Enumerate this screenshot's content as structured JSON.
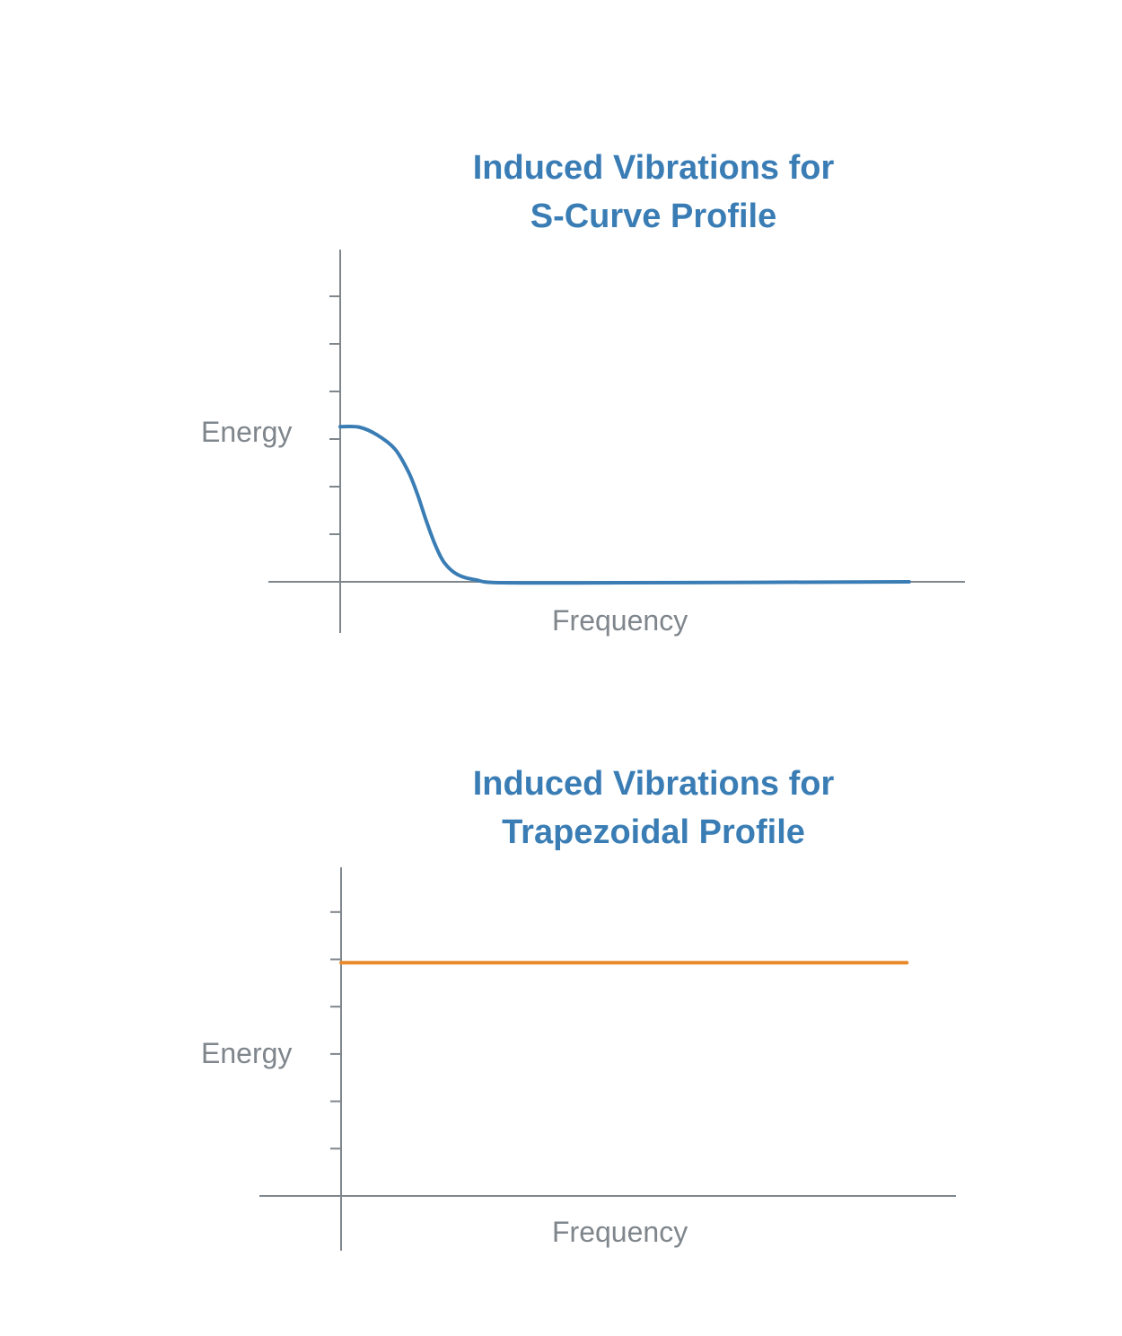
{
  "colors": {
    "axis": "#7f868c",
    "title": "#3a7db5"
  },
  "chart_data": [
    {
      "type": "line",
      "title_lines": [
        "Induced Vibrations for",
        "S-Curve Profile"
      ],
      "xlabel": "Frequency",
      "ylabel": "Energy",
      "xlim": [
        -1.5,
        13.1
      ],
      "ylim": [
        -1.05,
        7
      ],
      "y_ticks_count": 6,
      "grid": false,
      "series": [
        {
          "color": "#3a7db5",
          "x": [
            0,
            0.4,
            0.77,
            1.15,
            1.43,
            1.62,
            1.81,
            2.0,
            2.19,
            2.47,
            2.85,
            3.42,
            6,
            11.96
          ],
          "y": [
            3.26,
            3.25,
            3.09,
            2.79,
            2.32,
            1.85,
            1.28,
            0.77,
            0.4,
            0.15,
            0.04,
            -0.02,
            -0.02,
            0.0
          ]
        }
      ]
    },
    {
      "type": "line",
      "title_lines": [
        "Induced Vibrations for",
        "Trapezoidal Profile"
      ],
      "xlabel": "Frequency",
      "ylabel": "Energy",
      "xlim": [
        -1.7,
        13.0
      ],
      "ylim": [
        -1.15,
        6.9
      ],
      "y_ticks_count": 6,
      "grid": false,
      "series": [
        {
          "color": "#e8892a",
          "x": [
            0,
            11.96
          ],
          "y": [
            4.93,
            4.93
          ]
        }
      ]
    }
  ]
}
